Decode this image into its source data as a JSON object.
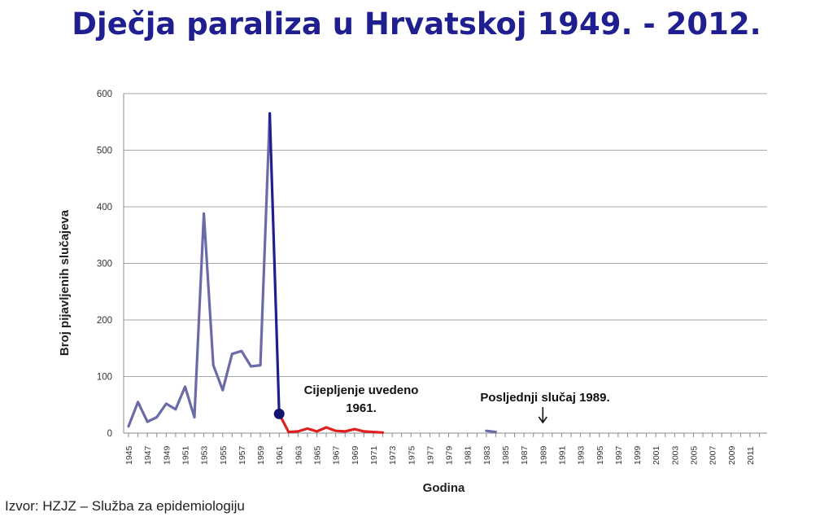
{
  "title": "Dječja paraliza u Hrvatskoj 1949. - 2012.",
  "source": "Izvor: HZJZ – Služba za epidemiologiju",
  "chart_data": {
    "type": "line",
    "xlabel": "Godina",
    "ylabel": "Broj pijavljenih slučajeva",
    "ylim": [
      0,
      600
    ],
    "yticks": [
      0,
      100,
      200,
      300,
      400,
      500,
      600
    ],
    "xlim": [
      1945,
      2012
    ],
    "xtick_labels": [
      "1945",
      "1947",
      "1949",
      "1951",
      "1953",
      "1955",
      "1957",
      "1959",
      "1961",
      "1963",
      "1965",
      "1967",
      "1969",
      "1971",
      "1973",
      "1975",
      "1977",
      "1979",
      "1981",
      "1983",
      "1985",
      "1987",
      "1989",
      "1991",
      "1993",
      "1995",
      "1997",
      "1999",
      "2001",
      "2003",
      "2005",
      "2007",
      "2009",
      "2011"
    ],
    "grid": true,
    "series": [
      {
        "color": "#6b6ba8",
        "x": [
          1945,
          1946,
          1947,
          1948,
          1949,
          1950,
          1951,
          1952,
          1953,
          1954,
          1955,
          1956,
          1957,
          1958,
          1959,
          1960
        ],
        "values": [
          12,
          55,
          20,
          28,
          52,
          42,
          82,
          28,
          388,
          120,
          76,
          140,
          145,
          118,
          120,
          565
        ]
      },
      {
        "color": "#1f1f8f",
        "x": [
          1960,
          1961
        ],
        "values": [
          565,
          34
        ]
      },
      {
        "color": "#e02020",
        "x": [
          1961,
          1962,
          1963,
          1964,
          1965,
          1966,
          1967,
          1968,
          1969,
          1970,
          1971,
          1972
        ],
        "values": [
          34,
          2,
          3,
          8,
          3,
          10,
          4,
          3,
          7,
          3,
          2,
          1
        ]
      },
      {
        "color": "#6b6ba8",
        "x": [
          1983,
          1984
        ],
        "values": [
          4,
          2
        ]
      }
    ],
    "annotations": [
      {
        "text_line1": "Cijepljenje uvedeno",
        "text_line2": "1961.",
        "x": 1961,
        "y": 34
      },
      {
        "text_line1": "Posljednji slučaj 1989.",
        "x": 1989
      }
    ]
  }
}
